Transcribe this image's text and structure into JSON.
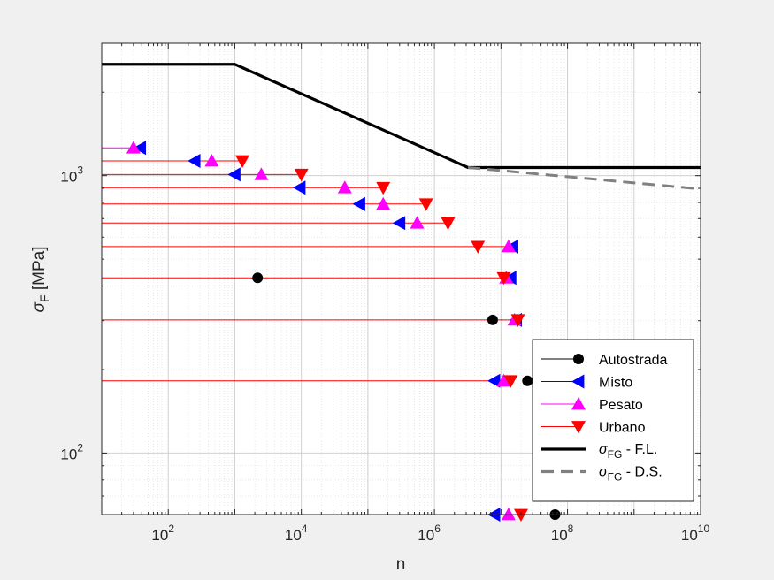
{
  "chart_data": {
    "type": "scatter",
    "xlabel": "n",
    "ylabel_main": "σ",
    "ylabel_sub": "F",
    "ylabel_unit": "[MPa]",
    "xscale": "log",
    "yscale": "log",
    "xlim": [
      10,
      10000000000
    ],
    "ylim": [
      60,
      3000
    ],
    "grid": true,
    "legend_position": "bottom-right",
    "x_ticks": [
      {
        "base": "10",
        "exp": "2",
        "value": 100
      },
      {
        "base": "10",
        "exp": "4",
        "value": 10000
      },
      {
        "base": "10",
        "exp": "6",
        "value": 1000000
      },
      {
        "base": "10",
        "exp": "8",
        "value": 100000000
      },
      {
        "base": "10",
        "exp": "10",
        "value": 10000000000
      }
    ],
    "y_ticks": [
      {
        "base": "10",
        "exp": "2",
        "value": 100
      },
      {
        "base": "10",
        "exp": "3",
        "value": 1000
      }
    ],
    "level_lines": [
      {
        "y": 1260,
        "x_end": 30,
        "color": "#ff00ff"
      },
      {
        "y": 1130,
        "x_end": 1200,
        "color": "#ff0000"
      },
      {
        "y": 1010,
        "x_end": 10000,
        "color": "#ff0000"
      },
      {
        "y": 905,
        "x_end": 180000,
        "color": "#ff0000"
      },
      {
        "y": 790,
        "x_end": 750000,
        "color": "#ff0000"
      },
      {
        "y": 675,
        "x_end": 1600000,
        "color": "#ff0000"
      },
      {
        "y": 555,
        "x_end": 15000000,
        "color": "#ff0000"
      },
      {
        "y": 428,
        "x_end": 14000000,
        "color": "#ff0000"
      },
      {
        "y": 302,
        "x_end": 18000000,
        "color": "#ff0000"
      },
      {
        "y": 182,
        "x_end": 14000000,
        "color": "#ff0000"
      },
      {
        "y": 60,
        "x_end": 20000000,
        "color": "#ff0000"
      }
    ],
    "series": [
      {
        "name": "Autostrada",
        "marker": "circle",
        "color": "#000000",
        "points": [
          {
            "x": 2200,
            "y": 428
          },
          {
            "x": 7500000,
            "y": 302
          },
          {
            "x": 25000000,
            "y": 182
          },
          {
            "x": 65000000,
            "y": 60
          }
        ]
      },
      {
        "name": "Misto",
        "marker": "triangle-left",
        "color": "#0000ff",
        "points": [
          {
            "x": 38,
            "y": 1260
          },
          {
            "x": 250,
            "y": 1130
          },
          {
            "x": 1000,
            "y": 1010
          },
          {
            "x": 9500,
            "y": 905
          },
          {
            "x": 75000,
            "y": 790
          },
          {
            "x": 300000,
            "y": 675
          },
          {
            "x": 15000000,
            "y": 555
          },
          {
            "x": 14000000,
            "y": 428
          },
          {
            "x": 17000000,
            "y": 302
          },
          {
            "x": 8000000,
            "y": 182
          },
          {
            "x": 8000000,
            "y": 60
          }
        ]
      },
      {
        "name": "Pesato",
        "marker": "triangle-up",
        "color": "#ff00ff",
        "points": [
          {
            "x": 30,
            "y": 1260
          },
          {
            "x": 450,
            "y": 1130
          },
          {
            "x": 2500,
            "y": 1010
          },
          {
            "x": 45000,
            "y": 905
          },
          {
            "x": 170000,
            "y": 790
          },
          {
            "x": 550000,
            "y": 675
          },
          {
            "x": 13000000,
            "y": 555
          },
          {
            "x": 12000000,
            "y": 428
          },
          {
            "x": 16000000,
            "y": 302
          },
          {
            "x": 11000000,
            "y": 182
          },
          {
            "x": 13000000,
            "y": 60
          }
        ]
      },
      {
        "name": "Urbano",
        "marker": "triangle-down",
        "color": "#ff0000",
        "points": [
          {
            "x": 1300,
            "y": 1130
          },
          {
            "x": 10000,
            "y": 1010
          },
          {
            "x": 170000,
            "y": 905
          },
          {
            "x": 750000,
            "y": 790
          },
          {
            "x": 1600000,
            "y": 675
          },
          {
            "x": 4500000,
            "y": 555
          },
          {
            "x": 11000000,
            "y": 428
          },
          {
            "x": 18000000,
            "y": 302
          },
          {
            "x": 14000000,
            "y": 182
          },
          {
            "x": 20000000,
            "y": 60
          }
        ]
      }
    ],
    "curves": [
      {
        "name_main": "σ",
        "name_sub": "FG",
        "name_rest": " - F.L.",
        "color": "#000000",
        "style": "solid",
        "points": [
          {
            "x": 10,
            "y": 2520
          },
          {
            "x": 1000,
            "y": 2520
          },
          {
            "x": 3200000,
            "y": 1070
          },
          {
            "x": 10000000000,
            "y": 1070
          }
        ]
      },
      {
        "name_main": "σ",
        "name_sub": "FG",
        "name_rest": " - D.S.",
        "color": "#808080",
        "style": "dashed",
        "points": [
          {
            "x": 3200000,
            "y": 1070
          },
          {
            "x": 10000000000,
            "y": 895
          }
        ]
      }
    ]
  }
}
